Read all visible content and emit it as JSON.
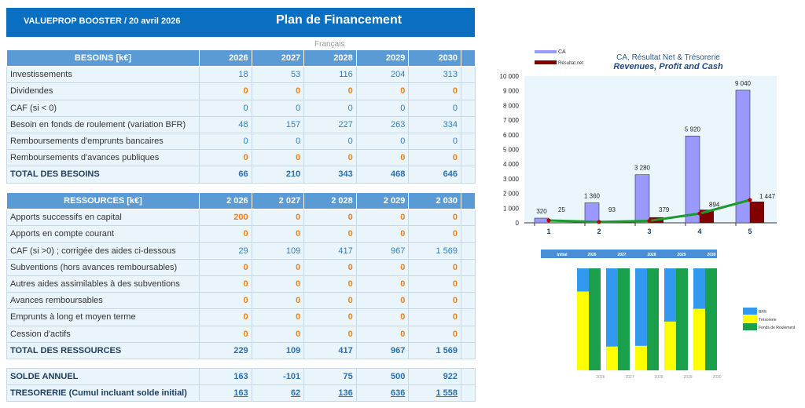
{
  "header": {
    "left": "VALUEPROP BOOSTER / 20 avril 2026",
    "title": "Plan de Financement",
    "language": "Français"
  },
  "besoins": {
    "title": "BESOINS [k€]",
    "years": [
      "2026",
      "2027",
      "2028",
      "2029",
      "2030"
    ],
    "rows": [
      {
        "label": "Investissements",
        "values": [
          "18",
          "53",
          "116",
          "204",
          "313"
        ],
        "style": "n"
      },
      {
        "label": "Dividendes",
        "values": [
          "0",
          "0",
          "0",
          "0",
          "0"
        ],
        "style": "o"
      },
      {
        "label": "CAF (si < 0)",
        "values": [
          "0",
          "0",
          "0",
          "0",
          "0"
        ],
        "style": "n"
      },
      {
        "label": "Besoin en fonds de roulement (variation BFR)",
        "values": [
          "48",
          "157",
          "227",
          "263",
          "334"
        ],
        "style": "n"
      },
      {
        "label": "Remboursements d'emprunts bancaires",
        "values": [
          "0",
          "0",
          "0",
          "0",
          "0"
        ],
        "style": "n"
      },
      {
        "label": "Remboursements d'avances publiques",
        "values": [
          "0",
          "0",
          "0",
          "0",
          "0"
        ],
        "style": "o"
      }
    ],
    "total": {
      "label": "TOTAL DES BESOINS",
      "values": [
        "66",
        "210",
        "343",
        "468",
        "646"
      ]
    }
  },
  "ressources": {
    "title": "RESSOURCES [k€]",
    "years": [
      "2 026",
      "2 027",
      "2 028",
      "2 029",
      "2 030"
    ],
    "rows": [
      {
        "label": "Apports successifs en capital",
        "values": [
          "200",
          "0",
          "0",
          "0",
          "0"
        ],
        "style": "o"
      },
      {
        "label": "Apports en compte courant",
        "values": [
          "0",
          "0",
          "0",
          "0",
          "0"
        ],
        "style": "o"
      },
      {
        "label": "CAF (si >0) ; corrigée des aides ci-dessous",
        "values": [
          "29",
          "109",
          "417",
          "967",
          "1 569"
        ],
        "style": "n"
      },
      {
        "label": "Subventions (hors avances remboursables)",
        "values": [
          "0",
          "0",
          "0",
          "0",
          "0"
        ],
        "style": "o"
      },
      {
        "label": "Autres aides assimilables à des subventions",
        "values": [
          "0",
          "0",
          "0",
          "0",
          "0"
        ],
        "style": "o"
      },
      {
        "label": "Avances remboursables",
        "values": [
          "0",
          "0",
          "0",
          "0",
          "0"
        ],
        "style": "o"
      },
      {
        "label": "Emprunts à long et moyen terme",
        "values": [
          "0",
          "0",
          "0",
          "0",
          "0"
        ],
        "style": "o"
      },
      {
        "label": "Cession d'actifs",
        "values": [
          "0",
          "0",
          "0",
          "0",
          "0"
        ],
        "style": "o"
      }
    ],
    "total": {
      "label": "TOTAL DES RESSOURCES",
      "values": [
        "229",
        "109",
        "417",
        "967",
        "1 569"
      ]
    }
  },
  "solde": {
    "label": "SOLDE ANNUEL",
    "values": [
      "163",
      "-101",
      "75",
      "500",
      "922"
    ]
  },
  "tresorerie": {
    "label": "TRESORERIE (Cumul incluant solde initial)",
    "values": [
      "163",
      "62",
      "136",
      "636",
      "1 558"
    ]
  },
  "chart_data": [
    {
      "type": "bar",
      "title": "CA, Résultat Net & Trésorerie",
      "subtitle": "Revenues, Profit and Cash",
      "categories": [
        "1",
        "2",
        "3",
        "4",
        "5"
      ],
      "series": [
        {
          "name": "CA",
          "values": [
            320,
            1360,
            3280,
            5920,
            9040
          ],
          "labels": [
            "320",
            "1 360",
            "3 280",
            "5 920",
            "9 040"
          ],
          "color": "#9999ff"
        },
        {
          "name": "Résultat net",
          "values": [
            25,
            93,
            379,
            894,
            1447
          ],
          "labels": [
            "25",
            "93",
            "379",
            "894",
            "1 447"
          ],
          "color": "#800000"
        },
        {
          "name": "Trésorerie",
          "type": "line",
          "values": [
            163,
            62,
            136,
            636,
            1558
          ],
          "color": "#1a9a2a"
        }
      ],
      "ylim": [
        0,
        10000
      ],
      "yticks": [
        "0",
        "1 000",
        "2 000",
        "3 000",
        "4 000",
        "5 000",
        "6 000",
        "7 000",
        "8 000",
        "9 000",
        "10 000"
      ],
      "legend": "top-left"
    },
    {
      "type": "bar",
      "stacked": true,
      "header": [
        "Initial",
        "2026",
        "2027",
        "2028",
        "2029",
        "2030"
      ],
      "categories": [
        "2026",
        "2027",
        "2028",
        "2029",
        "2030"
      ],
      "series": [
        {
          "name": "BFR",
          "values": [
            48,
            205,
            432,
            695,
            1029
          ],
          "color": "#3399ee"
        },
        {
          "name": "Trésorerie",
          "values": [
            163,
            62,
            136,
            636,
            1558
          ],
          "color": "#ffff00"
        },
        {
          "name": "Fonds de Roulement",
          "values": [
            211,
            267,
            568,
            1331,
            2587
          ],
          "color": "#1aa04a"
        }
      ],
      "legend": "right"
    }
  ]
}
